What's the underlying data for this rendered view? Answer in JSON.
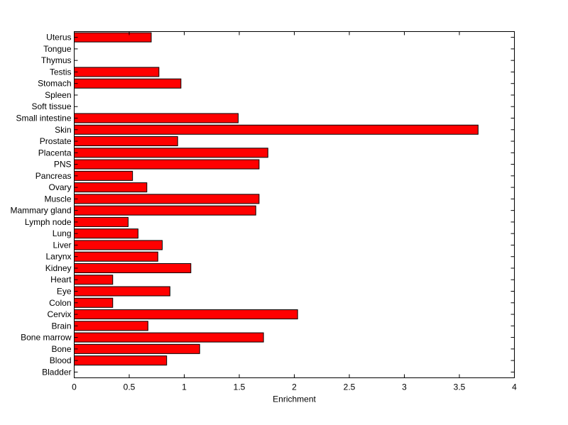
{
  "chart_data": {
    "type": "bar",
    "orientation": "horizontal",
    "categories": [
      "Bladder",
      "Blood",
      "Bone",
      "Bone marrow",
      "Brain",
      "Cervix",
      "Colon",
      "Eye",
      "Heart",
      "Kidney",
      "Larynx",
      "Liver",
      "Lung",
      "Lymph node",
      "Mammary gland",
      "Muscle",
      "Ovary",
      "Pancreas",
      "PNS",
      "Placenta",
      "Prostate",
      "Skin",
      "Small intestine",
      "Soft tissue",
      "Spleen",
      "Stomach",
      "Testis",
      "Thymus",
      "Tongue",
      "Uterus"
    ],
    "values": [
      0,
      0.84,
      1.14,
      1.72,
      0.67,
      2.03,
      0.35,
      0.87,
      0.35,
      1.06,
      0.76,
      0.8,
      0.58,
      0.49,
      1.65,
      1.68,
      0.66,
      0.53,
      1.68,
      1.76,
      0.94,
      3.67,
      1.49,
      0,
      0,
      0.97,
      0.77,
      0,
      0,
      0.7
    ],
    "xlabel": "Enrichment",
    "ylabel": "",
    "title": "",
    "xlim": [
      0,
      4
    ],
    "xticks": [
      0,
      0.5,
      1,
      1.5,
      2,
      2.5,
      3,
      3.5,
      4
    ],
    "xtick_labels": [
      "0",
      "0.5",
      "1",
      "1.5",
      "2",
      "2.5",
      "3",
      "3.5",
      "4"
    ],
    "grid": false,
    "bar_color": "#ff0000",
    "bar_edge_color": "#000000"
  }
}
